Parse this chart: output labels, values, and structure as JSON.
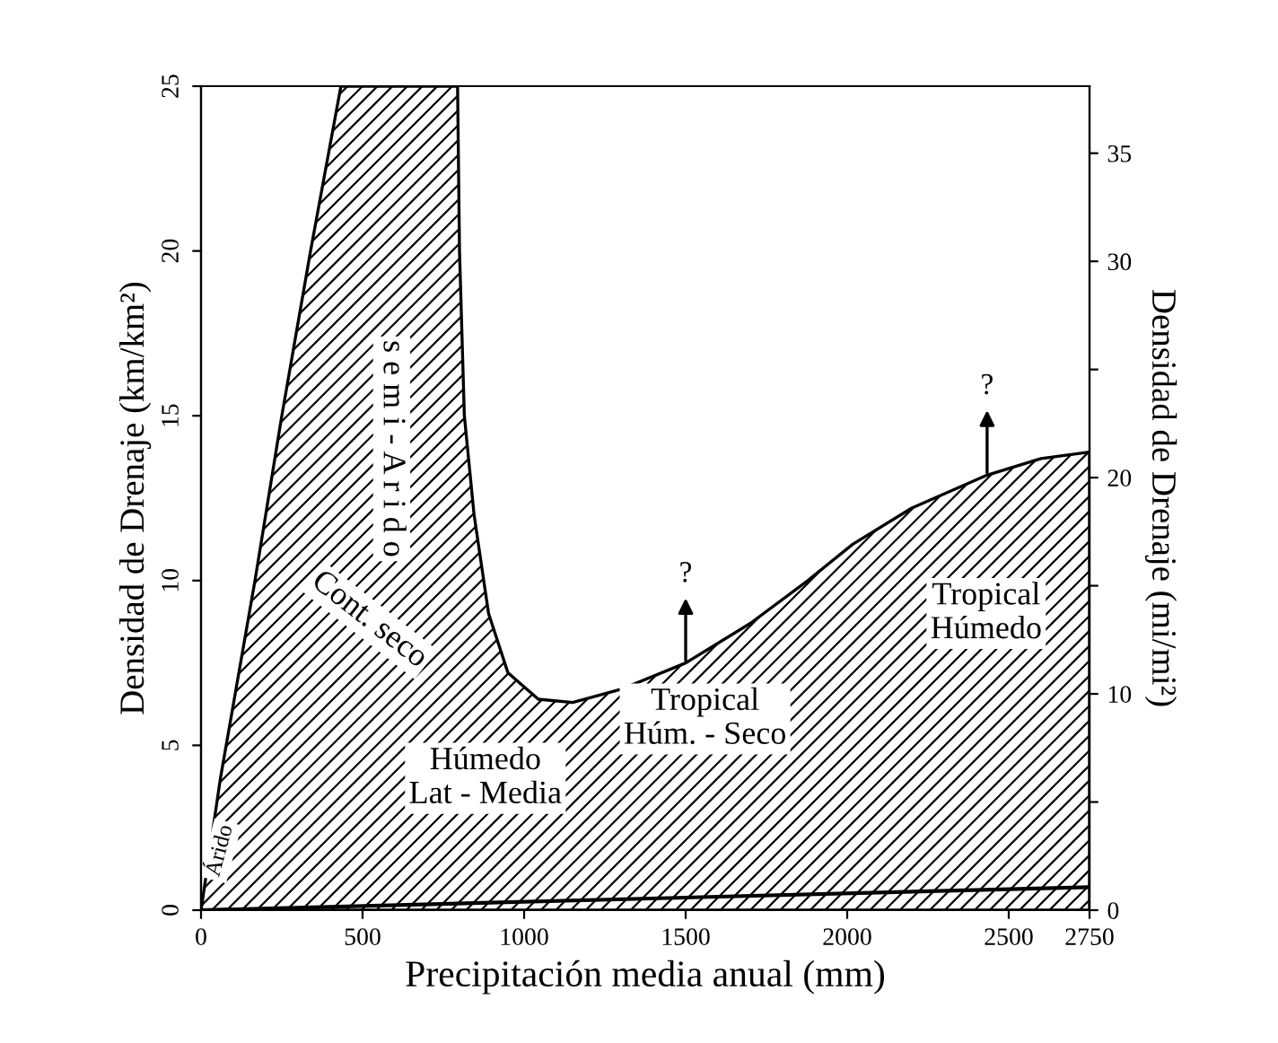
{
  "chart_data": {
    "type": "area",
    "xlabel": "Precipitación media anual (mm)",
    "ylabel": "Densidad de Drenaje (km/km²)",
    "y2label": "Densidad de Drenaje (mi/mi²)",
    "x": [
      0,
      60,
      167,
      250,
      339,
      433,
      600,
      794,
      800,
      815,
      845,
      890,
      950,
      1044,
      1150,
      1300,
      1500,
      1700,
      1878,
      2017,
      2200,
      2433,
      2600,
      2750
    ],
    "series": [
      {
        "color": "#000000",
        "values": [
          0,
          4,
          10,
          15,
          20,
          25,
          25,
          25,
          20,
          15,
          12,
          9,
          7.2,
          6.4,
          6.3,
          6.7,
          7.5,
          8.7,
          10.0,
          11.1,
          12.2,
          13.2,
          13.7,
          13.9
        ]
      },
      {
        "type": "line",
        "color": "#000000",
        "x": [
          0,
          2750
        ],
        "values": [
          0,
          0.7
        ]
      }
    ],
    "xlim": [
      0,
      2750
    ],
    "xticks": [
      0,
      500,
      1000,
      1500,
      2000,
      2500,
      2750
    ],
    "ylim": [
      0,
      25
    ],
    "yticks": [
      0,
      5,
      10,
      15,
      20,
      25
    ],
    "y2lim": [
      0,
      38.1
    ],
    "y2ticks": [
      0,
      {
        "value": 5,
        "label": null
      },
      10,
      {
        "value": 15,
        "label": null
      },
      20,
      {
        "value": 25,
        "label": null
      },
      30,
      35
    ],
    "grid": false,
    "annotations": [
      "Árido",
      "s e m i - A r i d o",
      "Cont. seco",
      "Húmedo\nLat - Media",
      "Tropical\nHúm. - Seco",
      "Tropical\nHúmedo",
      {
        "text": "?",
        "x": 1500,
        "y": 7.5
      },
      {
        "text": "?",
        "x": 2433,
        "y": 13.2
      }
    ]
  }
}
